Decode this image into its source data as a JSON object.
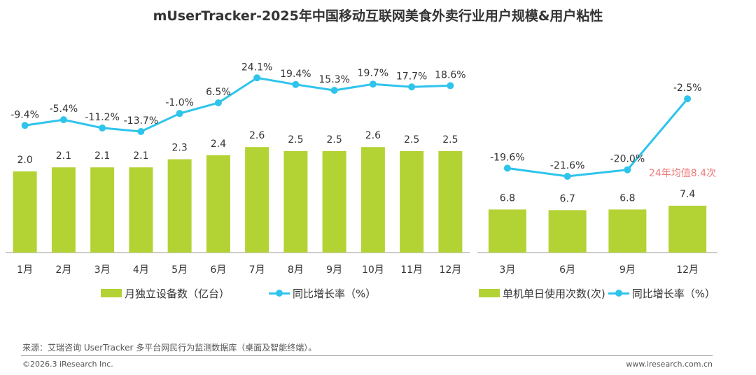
{
  "title": "mUserTracker-2025年中国移动互联网美食外卖行业用户规模&用户粘性",
  "colors": {
    "bar": "#b3d234",
    "line": "#2ec4ec",
    "annotation": "#f07b7b",
    "text": "#333333",
    "axis": "#999999"
  },
  "chart_data": [
    {
      "type": "bar",
      "categories": [
        "1月",
        "2月",
        "3月",
        "4月",
        "5月",
        "6月",
        "7月",
        "8月",
        "9月",
        "10月",
        "11月",
        "12月"
      ],
      "series": [
        {
          "name": "月独立设备数（亿台）",
          "type": "bar",
          "values": [
            2.0,
            2.1,
            2.1,
            2.1,
            2.3,
            2.4,
            2.6,
            2.5,
            2.5,
            2.6,
            2.5,
            2.5
          ],
          "labels": [
            "2.0",
            "2.1",
            "2.1",
            "2.1",
            "2.3",
            "2.4",
            "2.6",
            "2.5",
            "2.5",
            "2.6",
            "2.5",
            "2.5"
          ]
        },
        {
          "name": "同比增长率（%）",
          "type": "line",
          "values": [
            -9.4,
            -5.4,
            -11.2,
            -13.7,
            -1.0,
            6.5,
            24.1,
            19.4,
            15.3,
            19.7,
            17.7,
            18.6
          ],
          "labels": [
            "-9.4%",
            "-5.4%",
            "-11.2%",
            "-13.7%",
            "-1.0%",
            "6.5%",
            "24.1%",
            "19.4%",
            "15.3%",
            "19.7%",
            "17.7%",
            "18.6%"
          ]
        }
      ]
    },
    {
      "type": "bar",
      "categories": [
        "3月",
        "6月",
        "9月",
        "12月"
      ],
      "series": [
        {
          "name": "单机单日使用次数(次)",
          "type": "bar",
          "values": [
            6.8,
            6.7,
            6.8,
            7.4
          ],
          "labels": [
            "6.8",
            "6.7",
            "6.8",
            "7.4"
          ]
        },
        {
          "name": "同比增长率（%）",
          "type": "line",
          "values": [
            -19.6,
            -21.6,
            -20.0,
            -2.5
          ],
          "labels": [
            "-19.6%",
            "-21.6%",
            "-20.0%",
            "-2.5%"
          ]
        }
      ],
      "annotation": "24年均值8.4次"
    }
  ],
  "footer": {
    "source": "来源：艾瑞咨询 UserTracker 多平台网民行为监测数据库（桌面及智能终端）。",
    "copyright": "©2026.3 iResearch Inc.",
    "website": "www.iresearch.com.cn"
  }
}
